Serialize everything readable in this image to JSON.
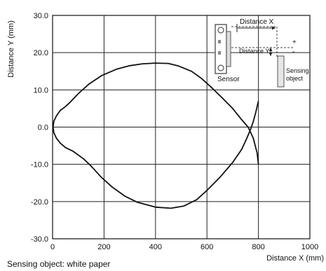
{
  "chart_data": {
    "type": "line",
    "title": "",
    "xlabel": "Distance X (mm)",
    "ylabel": "Distance Y (mm)",
    "xlim": [
      0,
      1000
    ],
    "ylim": [
      -30,
      30
    ],
    "xticks": [
      "0",
      "200",
      "400",
      "600",
      "800",
      "1000"
    ],
    "yticks": [
      "30.0",
      "20.0",
      "10.0",
      "0.0",
      "-10.0",
      "-20.0",
      "-30.0"
    ],
    "grid": true,
    "series": [
      {
        "color": "#111111",
        "points": [
          [
            800,
            7.0
          ],
          [
            790,
            4.0
          ],
          [
            780,
            1.5
          ],
          [
            770,
            -0.5
          ],
          [
            755,
            -3.0
          ],
          [
            735,
            -6.0
          ],
          [
            700,
            -9.5
          ],
          [
            650,
            -13.5
          ],
          [
            600,
            -17.0
          ],
          [
            560,
            -19.5
          ],
          [
            510,
            -21.2
          ],
          [
            460,
            -21.8
          ],
          [
            400,
            -21.5
          ],
          [
            330,
            -20.2
          ],
          [
            280,
            -18.5
          ],
          [
            230,
            -16.0
          ],
          [
            190,
            -13.5
          ],
          [
            150,
            -10.5
          ],
          [
            120,
            -8.5
          ],
          [
            80,
            -6.5
          ],
          [
            50,
            -5.5
          ],
          [
            30,
            -4.3
          ],
          [
            15,
            -3.0
          ],
          [
            5,
            -1.5
          ],
          [
            2,
            0.0
          ],
          [
            5,
            1.6
          ],
          [
            15,
            3.0
          ],
          [
            30,
            4.5
          ],
          [
            50,
            5.5
          ],
          [
            70,
            6.8
          ],
          [
            100,
            9.0
          ],
          [
            140,
            11.5
          ],
          [
            190,
            13.8
          ],
          [
            250,
            15.6
          ],
          [
            300,
            16.5
          ],
          [
            350,
            17.0
          ],
          [
            400,
            17.2
          ],
          [
            450,
            17.1
          ],
          [
            490,
            16.4
          ],
          [
            540,
            15.0
          ],
          [
            580,
            13.0
          ],
          [
            620,
            10.5
          ],
          [
            660,
            7.8
          ],
          [
            700,
            5.0
          ],
          [
            735,
            2.0
          ],
          [
            760,
            0.0
          ],
          [
            780,
            -3.0
          ],
          [
            795,
            -7.0
          ],
          [
            800,
            -10.0
          ]
        ]
      }
    ],
    "inset": {
      "distance_x_label": "Distance X",
      "distance_y_label": "Distance Y",
      "plus_label": "+",
      "minus_label": "-",
      "sensor_label": "Sensor",
      "object_label_line1": "Sensing",
      "object_label_line2": "object"
    },
    "footnote": "Sensing object: white paper"
  }
}
